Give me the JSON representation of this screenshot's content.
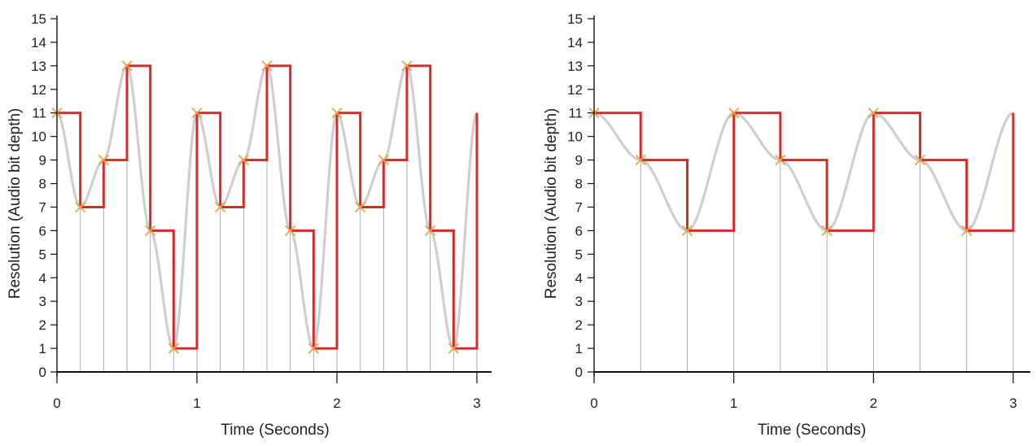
{
  "chart_data": [
    {
      "type": "line",
      "xlabel": "Time (Seconds)",
      "ylabel": "Resolution (Audio bit depth)",
      "xlim": [
        0,
        3
      ],
      "ylim": [
        0,
        15
      ],
      "x_ticks": [
        "0",
        "1",
        "2",
        "3"
      ],
      "y_ticks": [
        "0",
        "1",
        "2",
        "3",
        "4",
        "5",
        "6",
        "7",
        "8",
        "9",
        "10",
        "11",
        "12",
        "13",
        "14",
        "15"
      ],
      "grid": false,
      "sample_rate_per_second": 6,
      "sample_x": [
        0,
        0.1667,
        0.3333,
        0.5,
        0.6667,
        0.8333,
        1,
        1.1667,
        1.3333,
        1.5,
        1.6667,
        1.8333,
        2,
        2.1667,
        2.3333,
        2.5,
        2.6667,
        2.8333,
        3
      ],
      "sample_y": [
        11,
        7,
        9,
        13,
        6,
        1,
        11,
        7,
        9,
        13,
        6,
        1,
        11,
        7,
        9,
        13,
        6,
        1,
        11
      ],
      "series": [
        {
          "role": "analog-signal",
          "color": "#cfcfcf"
        },
        {
          "role": "quantized-steps",
          "color": "#d42b2b"
        },
        {
          "role": "sample-markers",
          "color": "#e8a24a"
        }
      ]
    },
    {
      "type": "line",
      "xlabel": "Time (Seconds)",
      "ylabel": "Resolution (Audio bit depth)",
      "xlim": [
        0,
        3
      ],
      "ylim": [
        0,
        15
      ],
      "x_ticks": [
        "0",
        "1",
        "2",
        "3"
      ],
      "y_ticks": [
        "0",
        "1",
        "2",
        "3",
        "4",
        "5",
        "6",
        "7",
        "8",
        "9",
        "10",
        "11",
        "12",
        "13",
        "14",
        "15"
      ],
      "grid": false,
      "sample_rate_per_second": 3,
      "sample_x": [
        0,
        0.3333,
        0.6667,
        1,
        1.3333,
        1.6667,
        2,
        2.3333,
        2.6667,
        3
      ],
      "sample_y": [
        11,
        9,
        6,
        11,
        9,
        6,
        11,
        9,
        6,
        11
      ],
      "series": [
        {
          "role": "analog-signal",
          "color": "#cfcfcf"
        },
        {
          "role": "quantized-steps",
          "color": "#d42b2b"
        },
        {
          "role": "sample-markers",
          "color": "#e8a24a"
        }
      ]
    }
  ]
}
